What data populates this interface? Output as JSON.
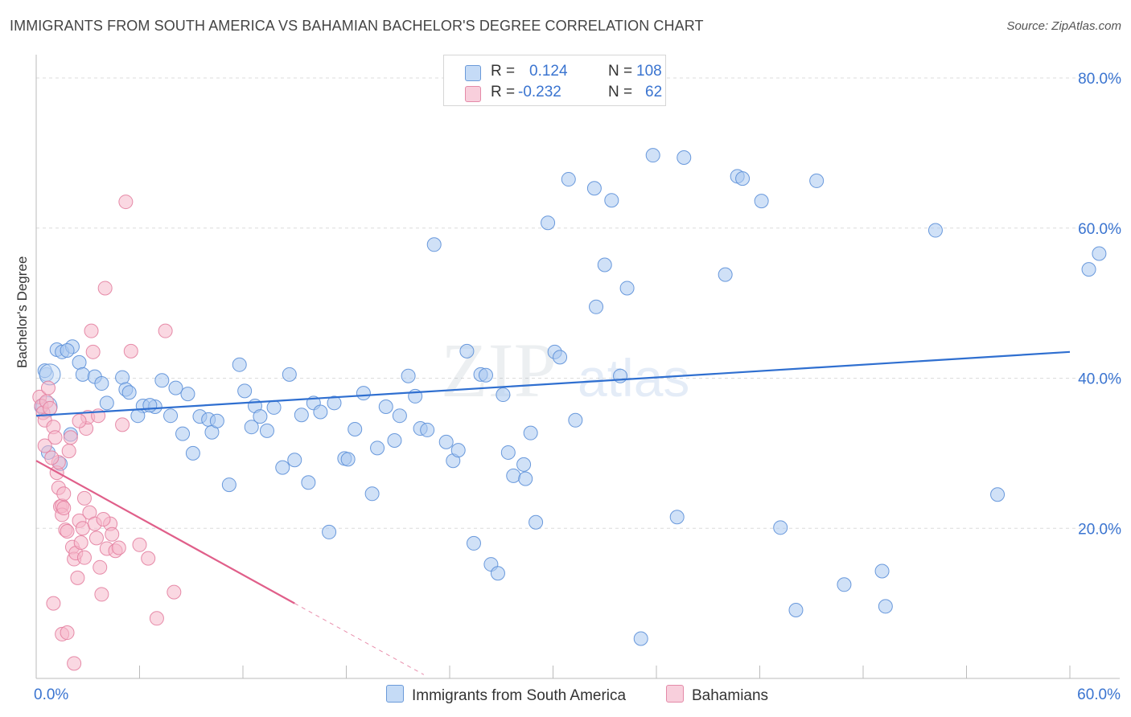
{
  "header": {
    "title": "IMMIGRANTS FROM SOUTH AMERICA VS BAHAMIAN BACHELOR'S DEGREE CORRELATION CHART",
    "source": "Source: ZipAtlas.com"
  },
  "watermark": {
    "zip": "ZIP",
    "atlas": "atlas"
  },
  "legend": {
    "rows": [
      {
        "r_label": "R =",
        "r_value": "0.124",
        "n_label": "N =",
        "n_value": "108",
        "color": "#a9c8f0"
      },
      {
        "r_label": "R =",
        "r_value": "-0.232",
        "n_label": "N =",
        "n_value": "62",
        "color": "#f5b8cb"
      }
    ]
  },
  "bottom_legend": [
    {
      "label": "Immigrants from South America",
      "color": "#a9c8f0"
    },
    {
      "label": "Bahamians",
      "color": "#f5b8cb"
    }
  ],
  "chart_data": {
    "type": "scatter",
    "title": "IMMIGRANTS FROM SOUTH AMERICA VS BAHAMIAN BACHELOR'S DEGREE CORRELATION CHART",
    "xlabel": "",
    "ylabel": "Bachelor's Degree",
    "xlim": [
      0,
      60
    ],
    "ylim": [
      0,
      80
    ],
    "x_tick_labels": [
      "0.0%",
      "60.0%"
    ],
    "y_tick_labels": [
      {
        "value": 20,
        "label": "20.0%"
      },
      {
        "value": 40,
        "label": "40.0%"
      },
      {
        "value": 60,
        "label": "60.0%"
      },
      {
        "value": 80,
        "label": "80.0%"
      }
    ],
    "grid": true,
    "series": [
      {
        "name": "Immigrants from South America",
        "color": "#a9c8f0",
        "stroke": "#5b8fd8",
        "line_color": "#2f6fd0",
        "trend": {
          "x0": 0,
          "y0": 35.0,
          "x1": 60,
          "y1": 43.5
        },
        "points": [
          [
            0.3,
            36.2
          ],
          [
            0.6,
            40.5
          ],
          [
            0.5,
            41.0
          ],
          [
            1.2,
            43.8
          ],
          [
            1.5,
            43.5
          ],
          [
            2.1,
            44.2
          ],
          [
            1.8,
            43.7
          ],
          [
            2.5,
            42.1
          ],
          [
            2.7,
            40.5
          ],
          [
            3.4,
            40.2
          ],
          [
            3.8,
            39.3
          ],
          [
            5.0,
            40.1
          ],
          [
            5.2,
            38.5
          ],
          [
            4.1,
            36.7
          ],
          [
            5.4,
            38.1
          ],
          [
            6.2,
            36.3
          ],
          [
            5.9,
            35.0
          ],
          [
            6.9,
            36.2
          ],
          [
            6.6,
            36.4
          ],
          [
            7.3,
            39.7
          ],
          [
            7.8,
            35.0
          ],
          [
            8.1,
            38.7
          ],
          [
            8.5,
            32.6
          ],
          [
            8.8,
            37.9
          ],
          [
            9.1,
            30.0
          ],
          [
            9.5,
            34.9
          ],
          [
            10.0,
            34.5
          ],
          [
            10.2,
            32.8
          ],
          [
            10.5,
            34.3
          ],
          [
            11.2,
            25.8
          ],
          [
            11.8,
            41.8
          ],
          [
            12.1,
            38.3
          ],
          [
            12.5,
            33.5
          ],
          [
            12.7,
            36.3
          ],
          [
            13.0,
            34.9
          ],
          [
            13.4,
            33.0
          ],
          [
            13.8,
            36.1
          ],
          [
            14.3,
            28.1
          ],
          [
            14.7,
            40.5
          ],
          [
            15.0,
            29.1
          ],
          [
            15.4,
            35.1
          ],
          [
            15.8,
            26.1
          ],
          [
            16.1,
            36.7
          ],
          [
            16.5,
            35.5
          ],
          [
            17.0,
            19.5
          ],
          [
            17.3,
            36.7
          ],
          [
            17.9,
            29.3
          ],
          [
            18.1,
            29.2
          ],
          [
            18.5,
            33.2
          ],
          [
            19.0,
            38.0
          ],
          [
            19.5,
            24.6
          ],
          [
            19.8,
            30.7
          ],
          [
            20.3,
            36.2
          ],
          [
            20.8,
            31.7
          ],
          [
            21.1,
            35.0
          ],
          [
            21.6,
            40.3
          ],
          [
            22.0,
            37.6
          ],
          [
            22.3,
            33.3
          ],
          [
            22.7,
            33.1
          ],
          [
            23.1,
            57.8
          ],
          [
            23.8,
            31.5
          ],
          [
            24.2,
            29.0
          ],
          [
            24.5,
            30.4
          ],
          [
            25.0,
            43.6
          ],
          [
            25.4,
            18.0
          ],
          [
            25.8,
            40.5
          ],
          [
            26.1,
            40.4
          ],
          [
            26.4,
            15.2
          ],
          [
            26.8,
            14.0
          ],
          [
            27.1,
            37.8
          ],
          [
            27.4,
            30.1
          ],
          [
            27.7,
            27.0
          ],
          [
            28.3,
            28.5
          ],
          [
            28.4,
            26.6
          ],
          [
            28.7,
            32.7
          ],
          [
            29.0,
            20.8
          ],
          [
            29.7,
            60.7
          ],
          [
            30.1,
            43.5
          ],
          [
            30.4,
            42.8
          ],
          [
            30.9,
            66.5
          ],
          [
            31.3,
            34.4
          ],
          [
            32.5,
            49.5
          ],
          [
            32.4,
            65.3
          ],
          [
            33.0,
            55.1
          ],
          [
            33.4,
            63.7
          ],
          [
            33.9,
            40.3
          ],
          [
            34.3,
            52.0
          ],
          [
            35.1,
            5.3
          ],
          [
            35.8,
            69.7
          ],
          [
            37.2,
            21.5
          ],
          [
            37.6,
            69.4
          ],
          [
            40.0,
            53.8
          ],
          [
            40.7,
            66.9
          ],
          [
            41.0,
            66.6
          ],
          [
            42.1,
            63.6
          ],
          [
            43.2,
            20.1
          ],
          [
            44.1,
            9.1
          ],
          [
            45.3,
            66.3
          ],
          [
            46.9,
            12.5
          ],
          [
            49.1,
            14.3
          ],
          [
            49.3,
            9.6
          ],
          [
            52.2,
            59.7
          ],
          [
            55.8,
            24.5
          ],
          [
            61.7,
            56.6
          ],
          [
            61.1,
            54.5
          ],
          [
            0.7,
            30.1
          ],
          [
            1.4,
            28.6
          ],
          [
            2.0,
            32.5
          ]
        ]
      },
      {
        "name": "Bahamians",
        "color": "#f5b8cb",
        "stroke": "#e37fa0",
        "line_color": "#e05f8a",
        "trend": {
          "x0": 0,
          "y0": 29.0,
          "x1": 15.0,
          "y1": 10.0
        },
        "trend_dashed_to": {
          "x": 22.5,
          "y": 0.5
        },
        "points": [
          [
            0.2,
            37.5
          ],
          [
            0.3,
            36.3
          ],
          [
            0.4,
            35.4
          ],
          [
            0.5,
            34.4
          ],
          [
            0.6,
            36.9
          ],
          [
            0.7,
            38.7
          ],
          [
            0.8,
            36.0
          ],
          [
            1.0,
            33.5
          ],
          [
            1.1,
            32.1
          ],
          [
            1.2,
            27.4
          ],
          [
            1.3,
            25.4
          ],
          [
            1.4,
            22.9
          ],
          [
            1.5,
            23.0
          ],
          [
            1.5,
            21.8
          ],
          [
            1.6,
            24.6
          ],
          [
            1.7,
            19.8
          ],
          [
            1.8,
            19.6
          ],
          [
            1.9,
            30.3
          ],
          [
            2.0,
            32.1
          ],
          [
            2.1,
            17.5
          ],
          [
            2.2,
            15.9
          ],
          [
            2.3,
            16.7
          ],
          [
            2.4,
            13.4
          ],
          [
            2.5,
            21.0
          ],
          [
            2.6,
            18.1
          ],
          [
            2.7,
            20.0
          ],
          [
            2.8,
            16.1
          ],
          [
            2.9,
            33.3
          ],
          [
            3.0,
            34.8
          ],
          [
            3.1,
            22.1
          ],
          [
            3.2,
            46.3
          ],
          [
            3.3,
            43.5
          ],
          [
            3.4,
            20.6
          ],
          [
            3.5,
            18.7
          ],
          [
            3.6,
            35.0
          ],
          [
            3.7,
            14.8
          ],
          [
            3.8,
            11.2
          ],
          [
            4.0,
            52.0
          ],
          [
            4.1,
            17.3
          ],
          [
            4.3,
            20.6
          ],
          [
            4.4,
            19.2
          ],
          [
            4.6,
            17.0
          ],
          [
            4.8,
            17.4
          ],
          [
            5.0,
            33.8
          ],
          [
            5.2,
            63.5
          ],
          [
            5.5,
            43.6
          ],
          [
            6.0,
            17.8
          ],
          [
            6.5,
            16.0
          ],
          [
            7.0,
            8.0
          ],
          [
            7.5,
            46.3
          ],
          [
            8.0,
            11.5
          ],
          [
            1.0,
            10.0
          ],
          [
            1.5,
            5.9
          ],
          [
            1.8,
            6.1
          ],
          [
            2.2,
            2.0
          ],
          [
            1.3,
            28.8
          ],
          [
            0.9,
            29.4
          ],
          [
            0.5,
            31.0
          ],
          [
            2.5,
            34.3
          ],
          [
            1.6,
            22.7
          ],
          [
            2.8,
            24.0
          ],
          [
            3.9,
            21.2
          ]
        ]
      }
    ]
  }
}
